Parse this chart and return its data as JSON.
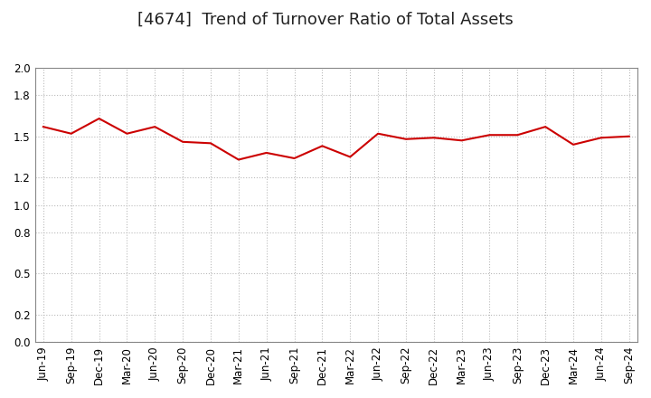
{
  "title": "[4674]  Trend of Turnover Ratio of Total Assets",
  "x_labels": [
    "Jun-19",
    "Sep-19",
    "Dec-19",
    "Mar-20",
    "Jun-20",
    "Sep-20",
    "Dec-20",
    "Mar-21",
    "Jun-21",
    "Sep-21",
    "Dec-21",
    "Mar-22",
    "Jun-22",
    "Sep-22",
    "Dec-22",
    "Mar-23",
    "Jun-23",
    "Sep-23",
    "Dec-23",
    "Mar-24",
    "Jun-24",
    "Sep-24"
  ],
  "values": [
    1.57,
    1.52,
    1.63,
    1.52,
    1.57,
    1.46,
    1.45,
    1.33,
    1.38,
    1.34,
    1.43,
    1.35,
    1.52,
    1.48,
    1.49,
    1.47,
    1.51,
    1.51,
    1.57,
    1.44,
    1.49,
    1.5
  ],
  "line_color": "#cc0000",
  "line_width": 1.5,
  "ylim": [
    0.0,
    2.0
  ],
  "yticks": [
    0.0,
    0.2,
    0.5,
    0.8,
    1.0,
    1.2,
    1.5,
    1.8,
    2.0
  ],
  "grid_color": "#bbbbbb",
  "background_color": "#ffffff",
  "title_fontsize": 13,
  "tick_fontsize": 8.5,
  "title_color": "#222222"
}
